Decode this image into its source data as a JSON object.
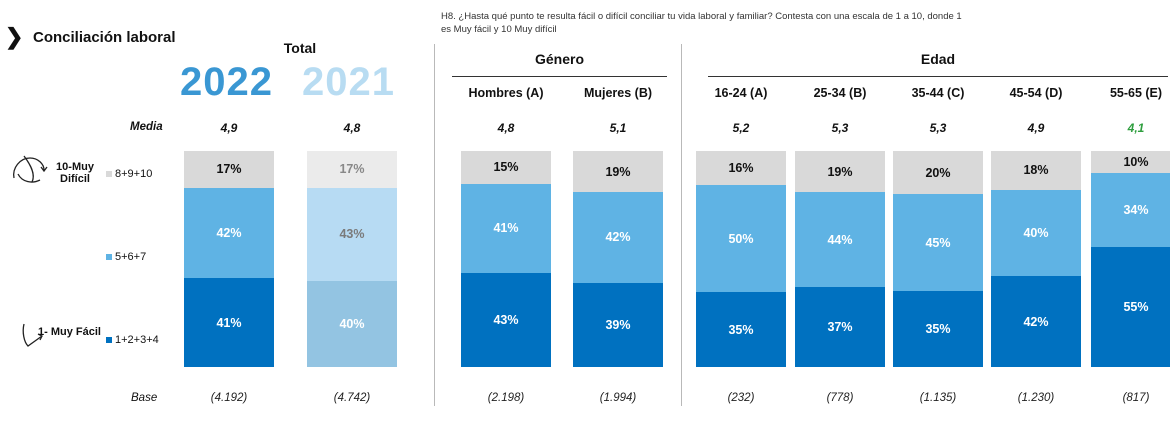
{
  "header": {
    "chevron": "❯",
    "title": "Conciliación laboral",
    "question": "H8. ¿Hasta qué punto te resulta fácil o difícil conciliar tu vida laboral y familiar? Contesta con una escala de 1 a 10, donde 1 es Muy fácil y 10 Muy difícil"
  },
  "groups": {
    "total": "Total",
    "gender": "Género",
    "age": "Edad"
  },
  "years": {
    "current": "2022",
    "previous": "2021"
  },
  "row_labels": {
    "mean": "Media",
    "base": "Base"
  },
  "scale": {
    "top": "10-Muy Difícil",
    "bottom": "1- Muy Fácil"
  },
  "legend": [
    {
      "label": "8+9+10",
      "color": "#d9d9d9"
    },
    {
      "label": "5+6+7",
      "color": "#5fb3e4"
    },
    {
      "label": "1+2+3+4",
      "color": "#0071c0"
    }
  ],
  "chart_data": {
    "type": "bar",
    "stacked": true,
    "unit": "%",
    "categories": [
      "2022",
      "2021",
      "Hombres (A)",
      "Mujeres (B)",
      "16-24 (A)",
      "25-34 (B)",
      "35-44 (C)",
      "45-54 (D)",
      "55-65 (E)"
    ],
    "headers": [
      "",
      "",
      "Hombres (A)",
      "Mujeres (B)",
      "16-24 (A)",
      "25-34 (B)",
      "35-44 (C)",
      "45-54 (D)",
      "55-65 (E)"
    ],
    "series": [
      {
        "name": "1+2+3+4",
        "values": [
          41,
          40,
          43,
          39,
          35,
          37,
          35,
          42,
          55
        ]
      },
      {
        "name": "5+6+7",
        "values": [
          42,
          43,
          41,
          42,
          50,
          44,
          45,
          40,
          34
        ]
      },
      {
        "name": "8+9+10",
        "values": [
          17,
          17,
          15,
          19,
          16,
          19,
          20,
          18,
          10
        ]
      }
    ],
    "labels": [
      [
        "41%",
        "40%",
        "43%",
        "39%",
        "35%",
        "37%",
        "35%",
        "42%",
        "55%"
      ],
      [
        "42%",
        "43%",
        "41%",
        "42%",
        "50%",
        "44%",
        "45%",
        "40%",
        "34%"
      ],
      [
        "17%",
        "17%",
        "15%",
        "19%",
        "16%",
        "19%",
        "20%",
        "18%",
        "10%"
      ]
    ],
    "mean": [
      "4,9",
      "4,8",
      "4,8",
      "5,1",
      "5,2",
      "5,3",
      "5,3",
      "4,9",
      "4,1"
    ],
    "base": [
      "(4.192)",
      "(4.742)",
      "(2.198)",
      "(1.994)",
      "(232)",
      "(778)",
      "(1.135)",
      "(1.230)",
      "(817)"
    ],
    "highlight_mean_color": "#2e9e3e",
    "colors_2022": [
      "#0071c0",
      "#5fb3e4",
      "#d9d9d9"
    ],
    "colors_2021": [
      "#93c4e2",
      "#b7dbf3",
      "#ebebeb"
    ],
    "ylim": [
      0,
      100
    ]
  }
}
